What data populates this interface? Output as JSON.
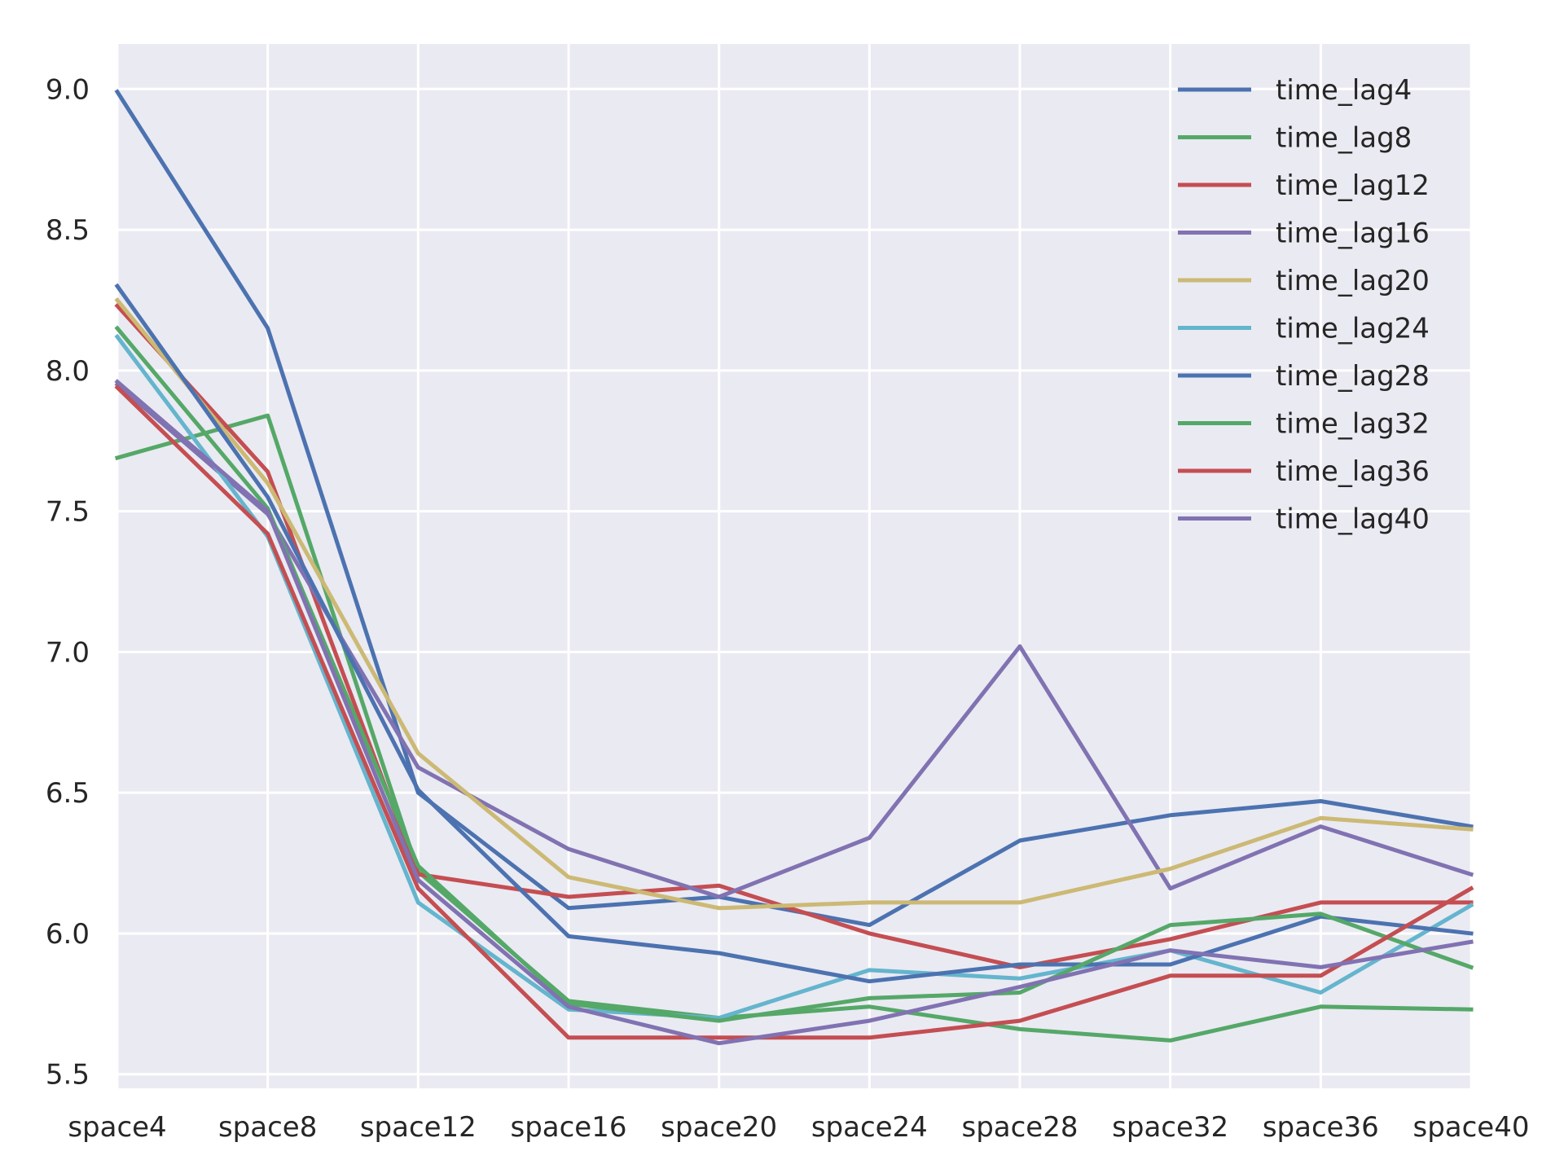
{
  "chart_data": {
    "type": "line",
    "title": "",
    "xlabel": "",
    "ylabel": "",
    "categories": [
      "space4",
      "space8",
      "space12",
      "space16",
      "space20",
      "space24",
      "space28",
      "space32",
      "space36",
      "space40"
    ],
    "ylim": [
      5.45,
      9.16
    ],
    "yticks": [
      "5.5",
      "6.0",
      "6.5",
      "7.0",
      "7.5",
      "8.0",
      "8.5",
      "9.0"
    ],
    "grid": true,
    "legend_position": "top-right",
    "series": [
      {
        "name": "time_lag4",
        "color": "#4c72b0",
        "values": [
          8.99,
          8.15,
          6.5,
          6.09,
          6.13,
          6.03,
          6.33,
          6.42,
          6.47,
          6.38
        ]
      },
      {
        "name": "time_lag8",
        "color": "#55a868",
        "values": [
          7.69,
          7.84,
          6.22,
          5.76,
          5.7,
          5.74,
          5.66,
          5.62,
          5.74,
          5.73
        ]
      },
      {
        "name": "time_lag12",
        "color": "#c44e52",
        "values": [
          8.23,
          7.64,
          6.21,
          6.13,
          6.17,
          6.0,
          5.88,
          5.98,
          6.11,
          6.11
        ]
      },
      {
        "name": "time_lag16",
        "color": "#8172b2",
        "values": [
          7.95,
          7.49,
          6.59,
          6.3,
          6.13,
          6.34,
          7.02,
          6.16,
          6.38,
          6.21
        ]
      },
      {
        "name": "time_lag20",
        "color": "#ccb974",
        "values": [
          8.25,
          7.6,
          6.64,
          6.2,
          6.09,
          6.11,
          6.11,
          6.23,
          6.41,
          6.37
        ]
      },
      {
        "name": "time_lag24",
        "color": "#64b5cd",
        "values": [
          8.12,
          7.41,
          6.11,
          5.73,
          5.7,
          5.87,
          5.84,
          5.94,
          5.79,
          6.1
        ]
      },
      {
        "name": "time_lag28",
        "color": "#4c72b0",
        "values": [
          8.3,
          7.55,
          6.51,
          5.99,
          5.93,
          5.83,
          5.89,
          5.89,
          6.06,
          6.0
        ]
      },
      {
        "name": "time_lag32",
        "color": "#55a868",
        "values": [
          8.15,
          7.51,
          6.24,
          5.75,
          5.69,
          5.77,
          5.79,
          6.03,
          6.07,
          5.88
        ]
      },
      {
        "name": "time_lag36",
        "color": "#c44e52",
        "values": [
          7.94,
          7.42,
          6.16,
          5.63,
          5.63,
          5.63,
          5.69,
          5.85,
          5.85,
          6.16
        ]
      },
      {
        "name": "time_lag40",
        "color": "#8172b2",
        "values": [
          7.96,
          7.5,
          6.19,
          5.74,
          5.61,
          5.69,
          5.81,
          5.94,
          5.88,
          5.97
        ]
      }
    ]
  }
}
